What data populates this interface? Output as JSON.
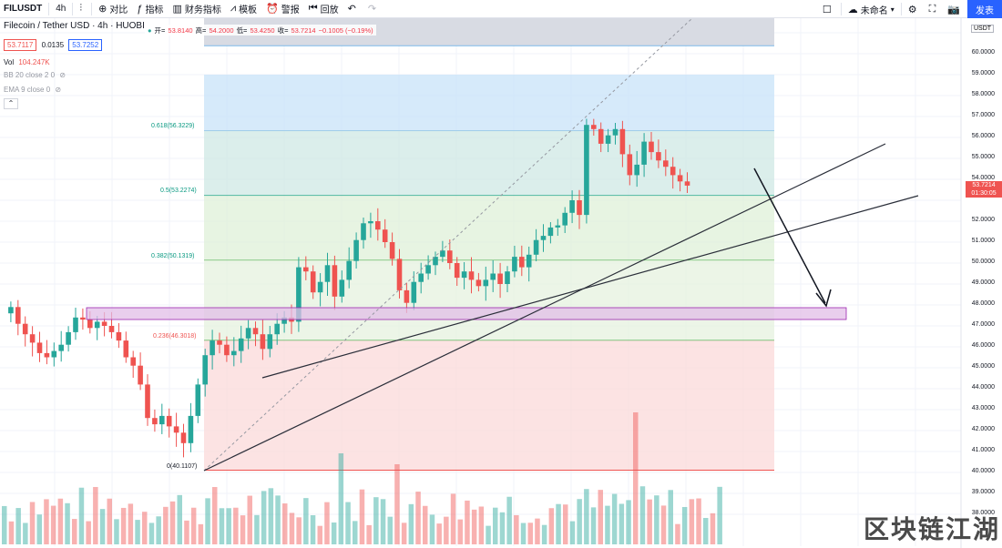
{
  "toolbar": {
    "symbol": "FILUSDT",
    "interval": "4h",
    "compare": "对比",
    "indicators": "指标",
    "financials": "财务指标",
    "templates": "模板",
    "alert": "警报",
    "replay": "回放",
    "layout_name": "未命名",
    "publish": "发表"
  },
  "header": {
    "title": "Filecoin / Tether USD · 4h · HUOBI",
    "bid": "53.7117",
    "spread": "0.0135",
    "ask": "53.7252",
    "open_label": "开=",
    "open": "53.8140",
    "high_label": "高=",
    "high": "54.2000",
    "low_label": "低=",
    "low": "53.4250",
    "close_label": "收=",
    "close": "53.7214",
    "change": "−0.1005 (−0.19%)"
  },
  "indicators": {
    "volume": "Vol",
    "volume_value": "104.247K",
    "bb": "BB 20 close 2 0",
    "ema": "EMA 9 close 0"
  },
  "fib_levels": [
    {
      "label": "0.618(56.3229)",
      "price": 56.3229
    },
    {
      "label": "0.5(53.2274)",
      "price": 53.2274
    },
    {
      "label": "0.382(50.1319)",
      "price": 50.1319
    },
    {
      "label": "0.236(46.3018)",
      "price": 46.3018
    },
    {
      "label": "0(40.1107)",
      "price": 40.1107
    }
  ],
  "y_axis": {
    "unit": "USDT",
    "ticks": [
      "60.0000",
      "59.0000",
      "58.0000",
      "57.0000",
      "56.0000",
      "55.0000",
      "54.0000",
      "52.0000",
      "51.0000",
      "50.0000",
      "49.0000",
      "48.0000",
      "47.0000",
      "46.0000",
      "45.0000",
      "44.0000",
      "43.0000",
      "42.0000",
      "41.0000",
      "40.0000",
      "39.0000",
      "38.0000"
    ],
    "current_price": "53.7214",
    "countdown": "01:30:05"
  },
  "watermark": "区块链江湖",
  "colors": {
    "up": "#26a69a",
    "down": "#ef5350",
    "accent": "#2962ff"
  }
}
